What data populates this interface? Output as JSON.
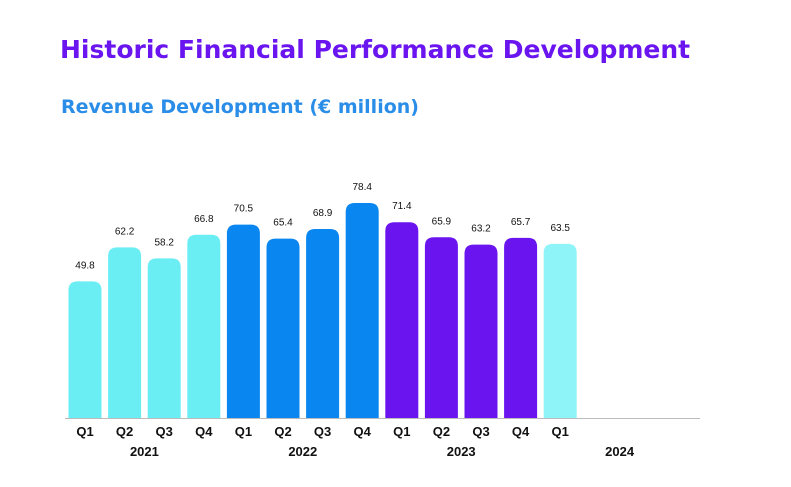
{
  "header": {
    "title": "Historic Financial Performance Development",
    "subtitle": "Revenue Development (€ million)"
  },
  "colors": {
    "title": "#6a14f0",
    "subtitle": "#2a8de8",
    "axis": "#bbbbbb"
  },
  "chart_data": {
    "type": "bar",
    "title": "Revenue Development (€ million)",
    "xlabel": "",
    "ylabel": "",
    "grid": false,
    "ylim": [
      0,
      80
    ],
    "categories": [
      "Q1",
      "Q2",
      "Q3",
      "Q4",
      "Q1",
      "Q2",
      "Q3",
      "Q4",
      "Q1",
      "Q2",
      "Q3",
      "Q4",
      "Q1"
    ],
    "values": [
      49.8,
      62.2,
      58.2,
      66.8,
      70.5,
      65.4,
      68.9,
      78.4,
      71.4,
      65.9,
      63.2,
      65.7,
      63.5
    ],
    "value_labels": [
      "49.8",
      "62.2",
      "58.2",
      "66.8",
      "70.5",
      "65.4",
      "68.9",
      "78.4",
      "71.4",
      "65.9",
      "63.2",
      "65.7",
      "63.5"
    ],
    "bar_colors": [
      "#6aeef4",
      "#6aeef4",
      "#6aeef4",
      "#6aeef4",
      "#0a86f0",
      "#0a86f0",
      "#0a86f0",
      "#0a86f0",
      "#6a14f0",
      "#6a14f0",
      "#6a14f0",
      "#6a14f0",
      "#8ef4f8"
    ],
    "year_groups": [
      {
        "label": "2021",
        "start": 0,
        "end": 3
      },
      {
        "label": "2022",
        "start": 4,
        "end": 7
      },
      {
        "label": "2023",
        "start": 8,
        "end": 11
      },
      {
        "label": "2024",
        "start": 12,
        "end": 15
      }
    ]
  }
}
